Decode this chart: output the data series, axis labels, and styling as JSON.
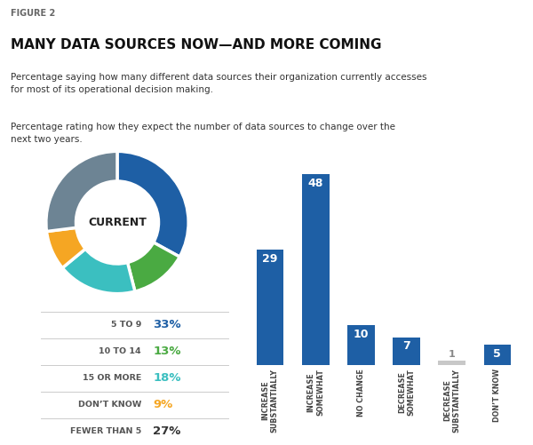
{
  "figure_label": "FIGURE 2",
  "title": "MANY DATA SOURCES NOW—AND MORE COMING",
  "subtitle1": "Percentage saying how many different data sources their organization currently accesses\nfor most of its operational decision making.",
  "subtitle2": "Percentage rating how they expect the number of data sources to change over the\nnext two years.",
  "donut_values": [
    33,
    13,
    18,
    9,
    27
  ],
  "donut_colors": [
    "#1e5fa5",
    "#4aaa42",
    "#3bbfc0",
    "#f5a623",
    "#6d8494"
  ],
  "donut_labels": [
    "5 TO 9",
    "10 TO 14",
    "15 OR MORE",
    "DON’T KNOW",
    "FEWER THAN 5"
  ],
  "donut_pct": [
    "33%",
    "13%",
    "18%",
    "9%",
    "27%"
  ],
  "donut_pct_colors": [
    "#1e5fa5",
    "#4aaa42",
    "#3bbfc0",
    "#f5a623",
    "#333333"
  ],
  "donut_center_text": "CURRENT",
  "bar_categories": [
    "INCREASE\nSUBSTANTIALLY",
    "INCREASE\nSOMEWHAT",
    "NO CHANGE",
    "DECREASE\nSOMEWHAT",
    "DECREASE\nSUBSTANTIALLY",
    "DON’T KNOW"
  ],
  "bar_values": [
    29,
    48,
    10,
    7,
    1,
    5
  ],
  "bar_colors": [
    "#1e5fa5",
    "#1e5fa5",
    "#1e5fa5",
    "#1e5fa5",
    "#c8c8c8",
    "#1e5fa5"
  ],
  "bar_label_color": [
    "#ffffff",
    "#ffffff",
    "#ffffff",
    "#ffffff",
    "#888888",
    "#ffffff"
  ],
  "background_color": "#ffffff"
}
